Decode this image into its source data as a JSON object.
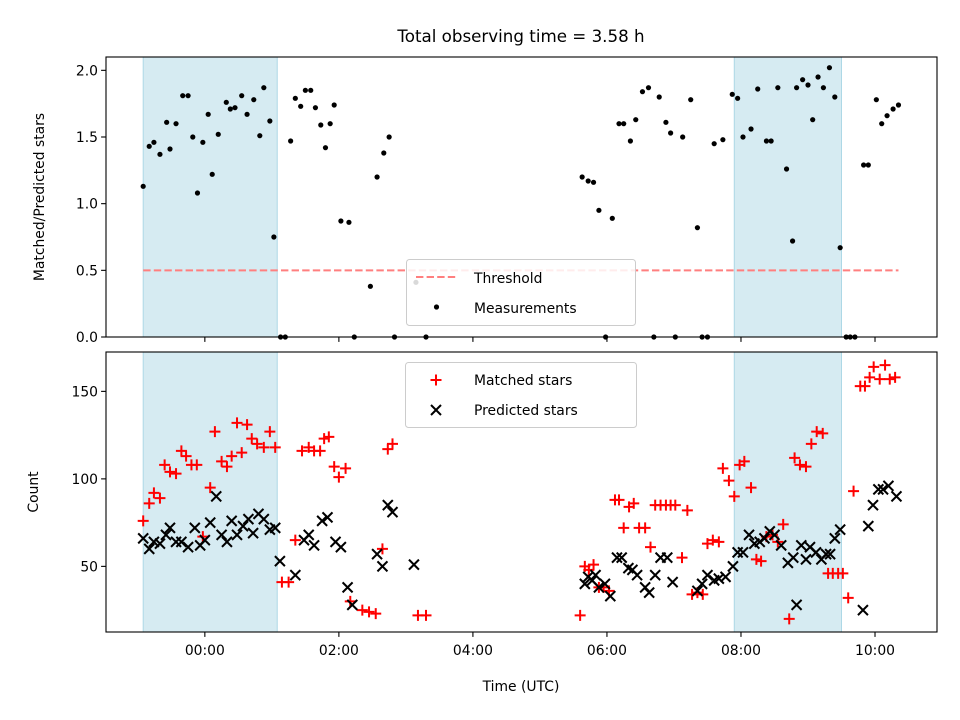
{
  "title": "Total observing time = 3.58 h",
  "chart_data": [
    {
      "type": "scatter",
      "ylabel": "Matched/Predicted stars",
      "xlim": [
        -1.475,
        10.925
      ],
      "ylim": [
        0,
        2.1
      ],
      "yticks": [
        0.0,
        0.5,
        1.0,
        1.5,
        2.0
      ],
      "ytick_labels": [
        "0.0",
        "0.5",
        "1.0",
        "1.5",
        "2.0"
      ],
      "shaded_intervals": [
        [
          -0.92,
          1.08
        ],
        [
          7.9,
          9.5
        ]
      ],
      "shade_color": "#add8e6",
      "legend": {
        "placement": "lower center",
        "entries": [
          "Threshold",
          "Measurements"
        ]
      },
      "series": [
        {
          "name": "Threshold",
          "kind": "dashed-line",
          "color": "#ff7f7f",
          "x": [
            -0.92,
            10.35
          ],
          "y": [
            0.5,
            0.5
          ]
        },
        {
          "name": "Measurements",
          "kind": "points",
          "color": "#000000",
          "x": [
            -0.92,
            -0.83,
            -0.76,
            -0.67,
            -0.57,
            -0.52,
            -0.43,
            -0.33,
            -0.25,
            -0.18,
            -0.11,
            -0.03,
            0.05,
            0.11,
            0.2,
            0.32,
            0.38,
            0.45,
            0.55,
            0.63,
            0.73,
            0.82,
            0.88,
            0.97,
            1.03,
            1.13,
            1.2,
            1.28,
            1.35,
            1.43,
            1.5,
            1.58,
            1.65,
            1.73,
            1.8,
            1.87,
            1.93,
            2.03,
            2.15,
            2.23,
            2.47,
            2.57,
            2.67,
            2.75,
            2.83,
            3.15,
            3.3,
            5.63,
            5.72,
            5.8,
            5.88,
            5.98,
            6.08,
            6.18,
            6.25,
            6.35,
            6.43,
            6.53,
            6.62,
            6.7,
            6.78,
            6.88,
            6.95,
            7.02,
            7.13,
            7.25,
            7.35,
            7.42,
            7.5,
            7.6,
            7.73,
            7.87,
            7.95,
            8.03,
            8.15,
            8.25,
            8.38,
            8.45,
            8.55,
            8.68,
            8.77,
            8.83,
            8.92,
            9.0,
            9.07,
            9.15,
            9.23,
            9.32,
            9.4,
            9.48,
            9.57,
            9.63,
            9.7,
            9.83,
            9.9,
            10.02,
            10.1,
            10.18,
            10.27,
            10.35
          ],
          "y": [
            1.13,
            1.43,
            1.46,
            1.37,
            1.61,
            1.41,
            1.6,
            1.81,
            1.81,
            1.5,
            1.08,
            1.46,
            1.67,
            1.22,
            1.52,
            1.76,
            1.71,
            1.72,
            1.81,
            1.67,
            1.78,
            1.51,
            1.87,
            1.62,
            0.75,
            0.0,
            0.0,
            1.47,
            1.79,
            1.73,
            1.85,
            1.85,
            1.72,
            1.59,
            1.42,
            1.6,
            1.74,
            0.87,
            0.86,
            0.0,
            0.38,
            1.2,
            1.38,
            1.5,
            0.0,
            0.41,
            0.0,
            1.2,
            1.17,
            1.16,
            0.95,
            0.0,
            0.89,
            1.6,
            1.6,
            1.47,
            1.63,
            1.84,
            1.87,
            0.0,
            1.8,
            1.61,
            1.53,
            0.0,
            1.5,
            1.78,
            0.82,
            0.0,
            0.0,
            1.45,
            1.48,
            1.82,
            1.79,
            1.5,
            1.56,
            1.86,
            1.47,
            1.47,
            1.87,
            1.26,
            0.72,
            1.87,
            1.93,
            1.89,
            1.63,
            1.95,
            1.87,
            2.02,
            1.8,
            0.67,
            0.0,
            0.0,
            0.0,
            1.29,
            1.29,
            1.78,
            1.6,
            1.66,
            1.71,
            1.74
          ]
        }
      ]
    },
    {
      "type": "scatter",
      "ylabel": "Count",
      "xlabel": "Time (UTC)",
      "xlim": [
        -1.475,
        10.925
      ],
      "ylim": [
        12.5,
        172.5
      ],
      "xticks": [
        0,
        2,
        4,
        6,
        8,
        10
      ],
      "xtick_labels": [
        "00:00",
        "02:00",
        "04:00",
        "06:00",
        "08:00",
        "10:00"
      ],
      "yticks": [
        50,
        100,
        150
      ],
      "ytick_labels": [
        "50",
        "100",
        "150"
      ],
      "shaded_intervals": [
        [
          -0.92,
          1.08
        ],
        [
          7.9,
          9.5
        ]
      ],
      "shade_color": "#add8e6",
      "legend": {
        "placement": "upper center",
        "entries": [
          "Matched stars",
          "Predicted stars"
        ]
      },
      "series": [
        {
          "name": "Matched stars",
          "marker": "+",
          "color": "#ff0000",
          "x": [
            -0.92,
            -0.83,
            -0.76,
            -0.67,
            -0.6,
            -0.52,
            -0.43,
            -0.35,
            -0.28,
            -0.2,
            -0.12,
            -0.03,
            0.08,
            0.15,
            0.25,
            0.33,
            0.4,
            0.48,
            0.55,
            0.63,
            0.7,
            0.78,
            0.88,
            0.97,
            1.05,
            1.15,
            1.25,
            1.35,
            1.45,
            1.55,
            1.63,
            1.72,
            1.78,
            1.85,
            1.93,
            2.0,
            2.1,
            2.17,
            2.35,
            2.45,
            2.55,
            2.65,
            2.73,
            2.8,
            3.18,
            3.3,
            5.6,
            5.67,
            5.73,
            5.8,
            5.88,
            5.95,
            6.03,
            6.12,
            6.18,
            6.25,
            6.33,
            6.4,
            6.48,
            6.57,
            6.65,
            6.72,
            6.8,
            6.88,
            6.95,
            7.02,
            7.12,
            7.2,
            7.27,
            7.35,
            7.43,
            7.5,
            7.58,
            7.67,
            7.73,
            7.82,
            7.9,
            7.98,
            8.05,
            8.15,
            8.23,
            8.3,
            8.38,
            8.47,
            8.55,
            8.63,
            8.72,
            8.8,
            8.88,
            8.97,
            9.05,
            9.13,
            9.22,
            9.3,
            9.37,
            9.45,
            9.52,
            9.6,
            9.68,
            9.78,
            9.85,
            9.92,
            9.98,
            10.07,
            10.15,
            10.22,
            10.3
          ],
          "y": [
            76,
            86,
            92,
            89,
            108,
            104,
            103,
            116,
            113,
            108,
            108,
            67,
            95,
            127,
            110,
            107,
            113,
            132,
            115,
            131,
            123,
            120,
            118,
            127,
            118,
            41,
            41,
            65,
            116,
            118,
            116,
            116,
            123,
            124,
            107,
            101,
            106,
            30,
            25,
            24,
            23,
            60,
            117,
            120,
            22,
            22,
            22,
            50,
            48,
            51,
            38,
            38,
            36,
            88,
            88,
            72,
            84,
            86,
            72,
            72,
            61,
            85,
            85,
            85,
            85,
            85,
            55,
            82,
            34,
            35,
            34,
            63,
            65,
            64,
            106,
            99,
            90,
            108,
            110,
            95,
            54,
            53,
            67,
            68,
            64,
            74,
            20,
            112,
            108,
            107,
            120,
            127,
            126,
            46,
            46,
            46,
            46,
            32,
            93,
            153,
            153,
            158,
            164,
            157,
            165,
            157,
            158
          ],
          "note": "approx"
        },
        {
          "name": "Predicted stars",
          "marker": "x",
          "color": "#000000",
          "x": [
            -0.92,
            -0.83,
            -0.76,
            -0.67,
            -0.58,
            -0.52,
            -0.43,
            -0.35,
            -0.25,
            -0.15,
            -0.07,
            0.0,
            0.08,
            0.17,
            0.25,
            0.33,
            0.4,
            0.48,
            0.57,
            0.65,
            0.72,
            0.8,
            0.88,
            0.97,
            1.05,
            1.12,
            1.35,
            1.48,
            1.55,
            1.63,
            1.75,
            1.83,
            1.95,
            2.03,
            2.13,
            2.2,
            2.57,
            2.65,
            2.73,
            2.8,
            3.12,
            5.67,
            5.72,
            5.78,
            5.83,
            5.88,
            5.97,
            6.05,
            6.15,
            6.22,
            6.32,
            6.38,
            6.45,
            6.57,
            6.63,
            6.72,
            6.8,
            6.9,
            6.98,
            7.35,
            7.42,
            7.5,
            7.6,
            7.67,
            7.77,
            7.88,
            7.95,
            8.03,
            8.12,
            8.2,
            8.28,
            8.35,
            8.43,
            8.5,
            8.6,
            8.7,
            8.78,
            8.83,
            8.9,
            8.97,
            9.03,
            9.12,
            9.2,
            9.27,
            9.33,
            9.4,
            9.48,
            9.82,
            9.9,
            9.97,
            10.05,
            10.12,
            10.2,
            10.32
          ],
          "y": [
            66,
            60,
            64,
            63,
            68,
            72,
            64,
            64,
            61,
            72,
            62,
            65,
            75,
            90,
            68,
            64,
            76,
            68,
            73,
            77,
            69,
            80,
            77,
            71,
            72,
            53,
            45,
            65,
            68,
            62,
            76,
            78,
            64,
            61,
            38,
            28,
            57,
            50,
            85,
            81,
            51,
            40,
            44,
            42,
            45,
            38,
            40,
            33,
            55,
            55,
            49,
            48,
            45,
            38,
            35,
            45,
            55,
            55,
            41,
            36,
            40,
            45,
            42,
            43,
            44,
            50,
            58,
            58,
            68,
            63,
            64,
            66,
            70,
            68,
            62,
            52,
            55,
            28,
            62,
            54,
            61,
            58,
            54,
            57,
            57,
            66,
            71,
            25,
            73,
            85,
            94,
            94,
            96,
            90
          ]
        }
      ]
    }
  ]
}
